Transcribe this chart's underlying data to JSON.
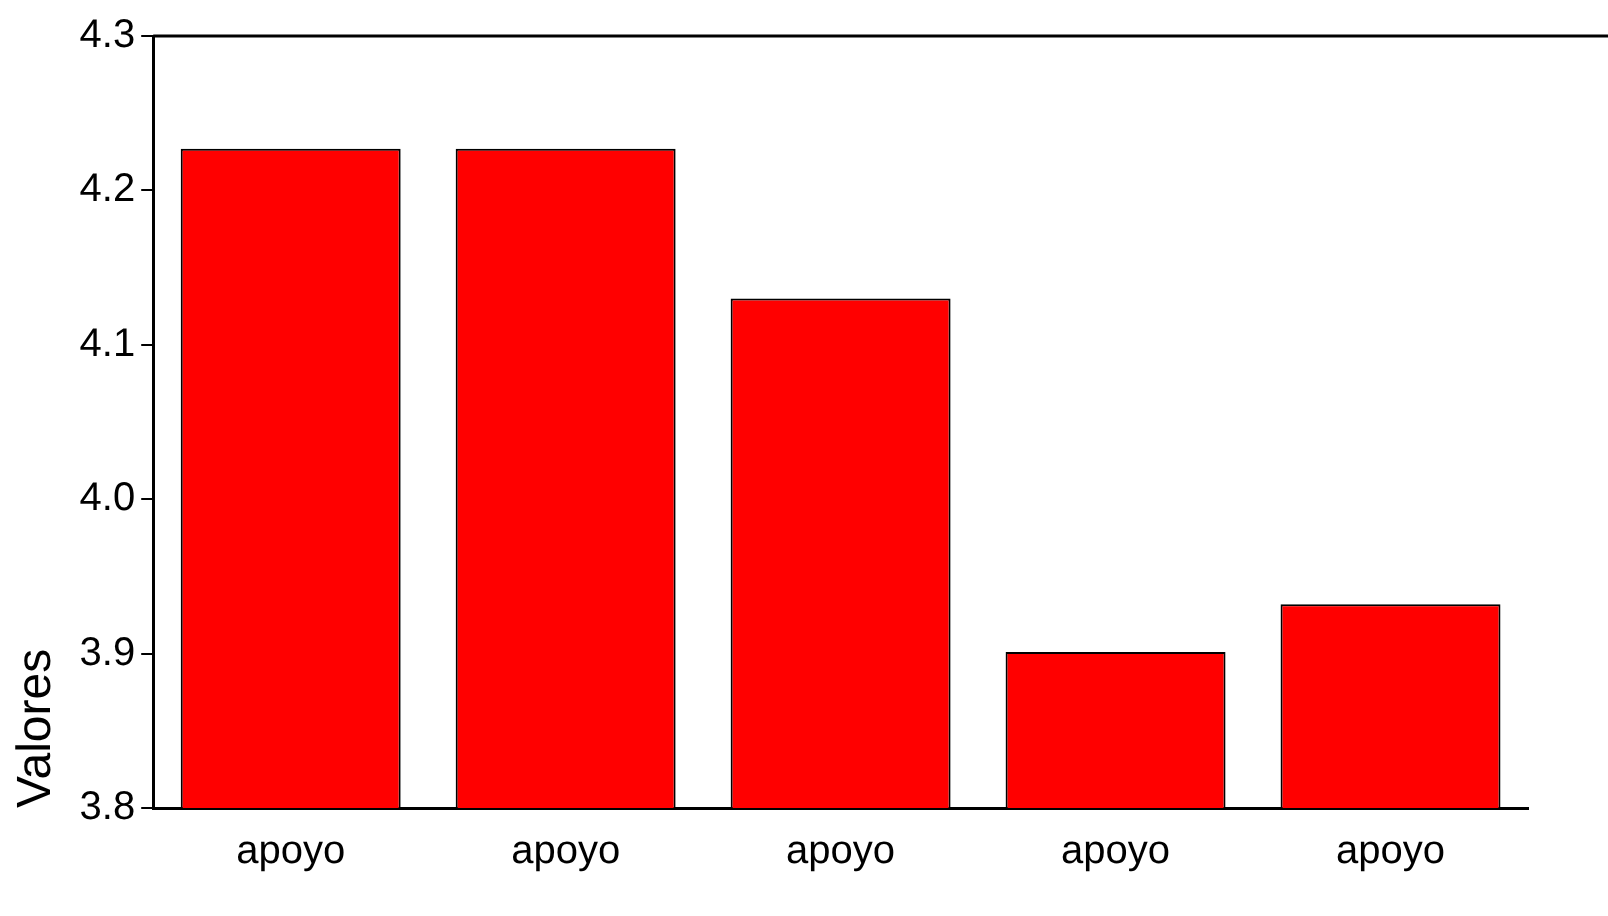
{
  "chart_data": {
    "type": "bar",
    "ylabel": "Valores",
    "categories": [
      "apoyo",
      "apoyo",
      "apoyo",
      "apoyo",
      "apoyo"
    ],
    "values": [
      4.227,
      4.227,
      4.13,
      3.901,
      3.932
    ],
    "color": "#ff0000",
    "ylim": [
      3.8,
      4.3
    ],
    "yticks": [
      {
        "value": 3.8,
        "label": "3.8"
      },
      3.9,
      {
        "value": 4,
        "label": "4.0"
      },
      4.1,
      4.2,
      4.3
    ],
    "grid": false,
    "legend": false
  }
}
